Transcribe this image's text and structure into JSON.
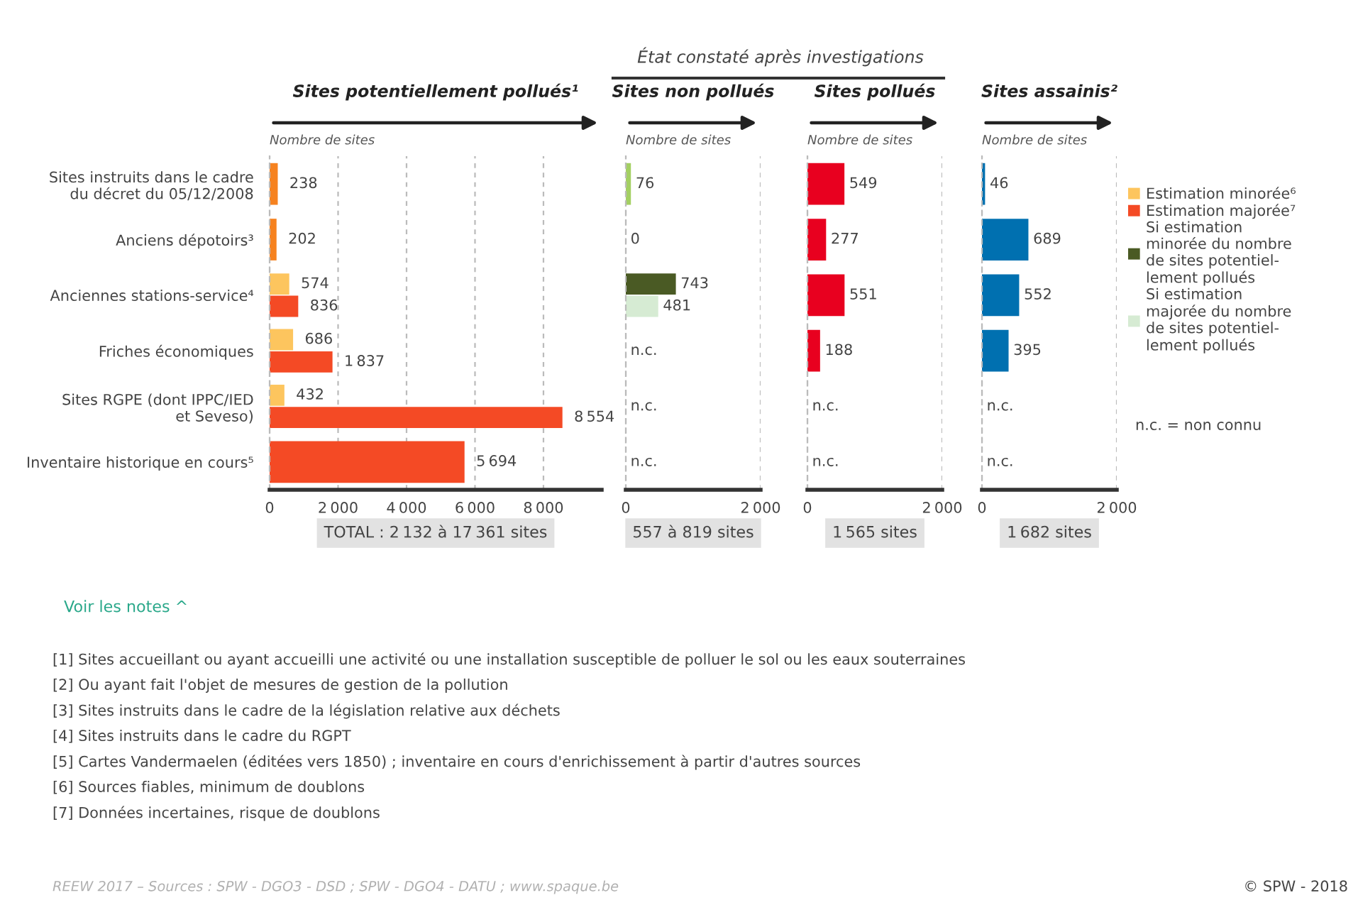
{
  "chart_data": [
    {
      "type": "bar",
      "orientation": "horizontal",
      "title": "Sites potentiellement pollués¹",
      "xlabel": "Nombre de sites",
      "categories": [
        "Sites instruits dans le cadre\ndu décret du 05/12/2008",
        "Anciens dépotoirs³",
        "Anciennes stations-service⁴",
        "Friches économiques",
        "Sites RGPE (dont IPPC/IED\net Seveso)",
        "Inventaire historique en cours⁵"
      ],
      "series": [
        {
          "name": "Estimation minorée⁶",
          "color": "#fdc55e",
          "values": [
            null,
            null,
            574,
            686,
            432,
            null
          ],
          "value_labels": [
            null,
            null,
            "574",
            "686",
            "432",
            null
          ]
        },
        {
          "name": "Estimation majorée⁷",
          "color": "#f44a25",
          "colors": [
            "#f6821f",
            "#f6821f",
            "#f44a25",
            "#f44a25",
            "#f44a25",
            "#f44a25"
          ],
          "values": [
            238,
            202,
            836,
            1837,
            8554,
            5694
          ],
          "value_labels": [
            "238",
            "202",
            "836",
            "1 837",
            "8 554",
            "5 694"
          ]
        }
      ],
      "xlim": [
        0,
        9700
      ],
      "xticks": [
        0,
        {
          "value": 2000,
          "label": "2 000"
        },
        {
          "value": 4000,
          "label": "4 000"
        },
        {
          "value": 6000,
          "label": "6 000"
        },
        {
          "value": 8000,
          "label": "8 000"
        }
      ],
      "grid": "x",
      "legend": "right",
      "annotations": [
        "TOTAL : 2 132 à 17 361 sites",
        "Voir les notes ^",
        "[1] Sites accueillant ou ayant accueilli une activité ou une installation susceptible de polluer le sol ou les eaux souterraines",
        "[2] Ou ayant fait l'objet de mesures de gestion de la pollution",
        "[3] Sites instruits dans le cadre de la législation relative aux déchets",
        "[4] Sites instruits dans le cadre du RGPT",
        "[5] Cartes Vandermaelen (éditées vers 1850) ; inventaire en cours d'enrichissement à partir d'autres sources",
        "[6] Sources fiables, minimum de doublons",
        "[7] Données incertaines, risque de doublons",
        "REEW 2017 – Sources : SPW - DGO3 - DSD ; SPW - DGO4 - DATU ; www.spaque.be",
        "© SPW - 2018"
      ]
    },
    {
      "type": "bar",
      "orientation": "horizontal",
      "title": "Sites non pollués",
      "xlabel": "Nombre de sites",
      "series": [
        {
          "name": "Si estimation\nminorée du nombre\nde sites potentiel-\nlement pollués",
          "color": "#4a5a24",
          "colors": [
            "#a3cf62",
            "#a3cf62",
            "#4a5a24",
            "#4a5a24",
            "#4a5a24",
            "#4a5a24"
          ],
          "values": [
            76,
            0,
            743,
            null,
            null,
            null
          ],
          "value_labels": [
            "76",
            "0",
            "743",
            "n.c.",
            "n.c.",
            "n.c."
          ]
        },
        {
          "name": "Si estimation\nmajorée du nombre\nde sites potentiel-\nlement pollués",
          "color": "#d6ebd3",
          "values": [
            null,
            null,
            481,
            null,
            null,
            null
          ],
          "value_labels": [
            null,
            null,
            "481",
            null,
            null,
            null
          ]
        }
      ],
      "xlim": [
        0,
        2000
      ],
      "xticks": [
        0,
        {
          "value": 2000,
          "label": "2 000"
        }
      ],
      "grid": "x",
      "legend": "right",
      "tick_labels": "x",
      "annotations": [
        "557 à 819 sites",
        "État constaté après investigations"
      ]
    },
    {
      "type": "bar",
      "orientation": "horizontal",
      "title": "Sites pollués",
      "xlabel": "Nombre de sites",
      "series": [
        {
          "color": "#e8001f",
          "values": [
            549,
            277,
            551,
            188,
            null,
            null
          ],
          "value_labels": [
            "549",
            "277",
            "551",
            "188",
            "n.c.",
            "n.c."
          ]
        }
      ],
      "xlim": [
        0,
        2000
      ],
      "xticks": [
        0,
        {
          "value": 2000,
          "label": "2 000"
        }
      ],
      "grid": "x",
      "tick_labels": "x",
      "annotations": [
        "1 565 sites"
      ]
    },
    {
      "type": "bar",
      "orientation": "horizontal",
      "title": "Sites assainis²",
      "xlabel": "Nombre de sites",
      "series": [
        {
          "color": "#0070b0",
          "values": [
            46,
            689,
            552,
            395,
            null,
            null
          ],
          "value_labels": [
            "46",
            "689",
            "552",
            "395",
            "n.c.",
            "n.c."
          ]
        }
      ],
      "xlim": [
        0,
        2000
      ],
      "xticks": [
        0,
        {
          "value": 2000,
          "label": "2 000"
        }
      ],
      "grid": "x",
      "tick_labels": "x",
      "annotations": [
        "1 682 sites",
        "n.c. = non connu"
      ]
    }
  ]
}
